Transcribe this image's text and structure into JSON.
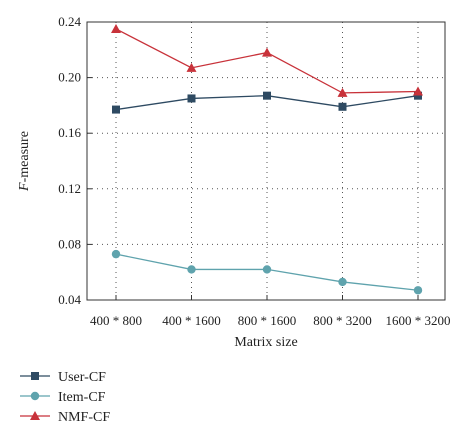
{
  "chart_data": {
    "type": "line",
    "categories": [
      "400 * 800",
      "400 * 1600",
      "800 * 1600",
      "800 * 3200",
      "1600 * 3200"
    ],
    "xlabel": "Matrix size",
    "ylabel_italic": "F",
    "ylabel_rest": "-measure",
    "ylim": [
      0.04,
      0.24
    ],
    "yticks": [
      "0.04",
      "0.08",
      "0.12",
      "0.16",
      "0.20",
      "0.24"
    ],
    "grid": true,
    "legend_position": "bottom-left, below plot",
    "series": [
      {
        "name": "User-CF",
        "color": "#2e4a62",
        "marker": "square",
        "values": [
          0.177,
          0.185,
          0.187,
          0.179,
          0.187
        ]
      },
      {
        "name": "Item-CF",
        "color": "#5fa3ad",
        "marker": "circle",
        "values": [
          0.073,
          0.062,
          0.062,
          0.053,
          0.047
        ]
      },
      {
        "name": "NMF-CF",
        "color": "#c8323a",
        "marker": "triangle",
        "values": [
          0.235,
          0.207,
          0.218,
          0.189,
          0.19
        ]
      }
    ]
  }
}
